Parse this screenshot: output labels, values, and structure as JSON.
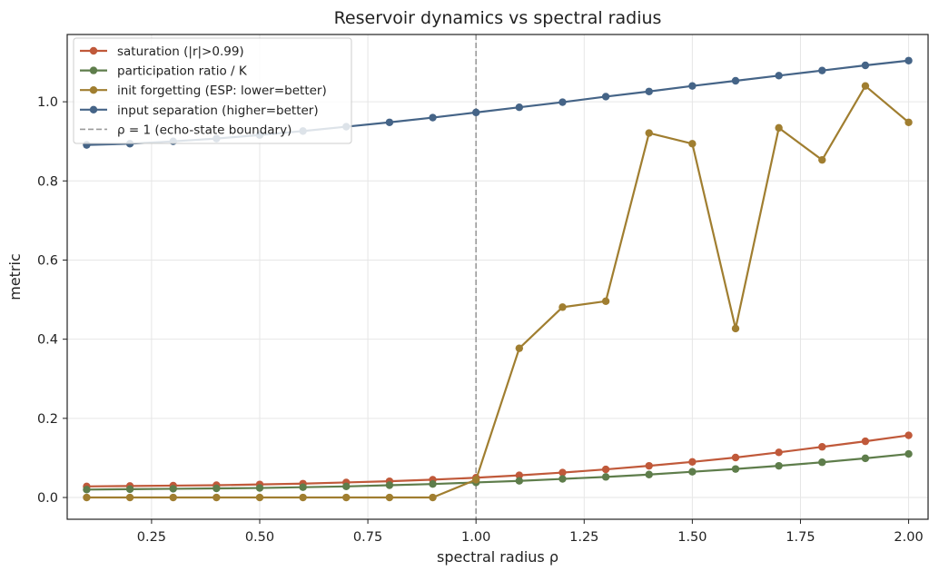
{
  "chart_data": {
    "type": "line",
    "title": "Reservoir dynamics vs spectral radius",
    "xlabel": "spectral radius ρ",
    "ylabel": "metric",
    "xlim": [
      0.055,
      2.045
    ],
    "ylim": [
      -0.055,
      1.17
    ],
    "xticks": [
      0.25,
      0.5,
      0.75,
      1.0,
      1.25,
      1.5,
      1.75,
      2.0
    ],
    "xtick_labels": [
      "0.25",
      "0.50",
      "0.75",
      "1.00",
      "1.25",
      "1.50",
      "1.75",
      "2.00"
    ],
    "yticks": [
      0.0,
      0.2,
      0.4,
      0.6,
      0.8,
      1.0
    ],
    "ytick_labels": [
      "0.0",
      "0.2",
      "0.4",
      "0.6",
      "0.8",
      "1.0"
    ],
    "grid": true,
    "legend_position": "top-left",
    "x": [
      0.1,
      0.2,
      0.3,
      0.4,
      0.5,
      0.6,
      0.7,
      0.8,
      0.9,
      1.0,
      1.1,
      1.2,
      1.3,
      1.4,
      1.5,
      1.6,
      1.7,
      1.8,
      1.9,
      2.0
    ],
    "series": [
      {
        "name": "saturation (|r|>0.99)",
        "color": "#c0593a",
        "values": [
          0.028,
          0.029,
          0.03,
          0.031,
          0.033,
          0.035,
          0.038,
          0.041,
          0.045,
          0.05,
          0.056,
          0.063,
          0.071,
          0.08,
          0.09,
          0.101,
          0.114,
          0.128,
          0.142,
          0.157
        ]
      },
      {
        "name": "participation ratio / K",
        "color": "#5e7d4b",
        "values": [
          0.02,
          0.021,
          0.022,
          0.023,
          0.024,
          0.026,
          0.028,
          0.031,
          0.034,
          0.038,
          0.042,
          0.047,
          0.052,
          0.058,
          0.065,
          0.072,
          0.08,
          0.089,
          0.099,
          0.11
        ]
      },
      {
        "name": "init forgetting (ESP: lower=better)",
        "color": "#a07e30",
        "values": [
          0.0,
          0.0,
          0.0,
          0.0,
          0.0,
          0.0,
          0.0,
          0.0,
          0.0,
          0.045,
          0.377,
          0.481,
          0.496,
          0.921,
          0.894,
          0.427,
          0.934,
          0.853,
          1.04,
          0.948
        ]
      },
      {
        "name": "input separation (higher=better)",
        "color": "#456487",
        "values": [
          0.891,
          0.894,
          0.9,
          0.907,
          0.916,
          0.926,
          0.937,
          0.948,
          0.96,
          0.973,
          0.986,
          0.999,
          1.013,
          1.026,
          1.04,
          1.053,
          1.066,
          1.079,
          1.092,
          1.104
        ]
      }
    ],
    "reference_line": {
      "x": 1.0,
      "label": "ρ = 1 (echo-state boundary)",
      "color": "#9a9a9a"
    }
  }
}
